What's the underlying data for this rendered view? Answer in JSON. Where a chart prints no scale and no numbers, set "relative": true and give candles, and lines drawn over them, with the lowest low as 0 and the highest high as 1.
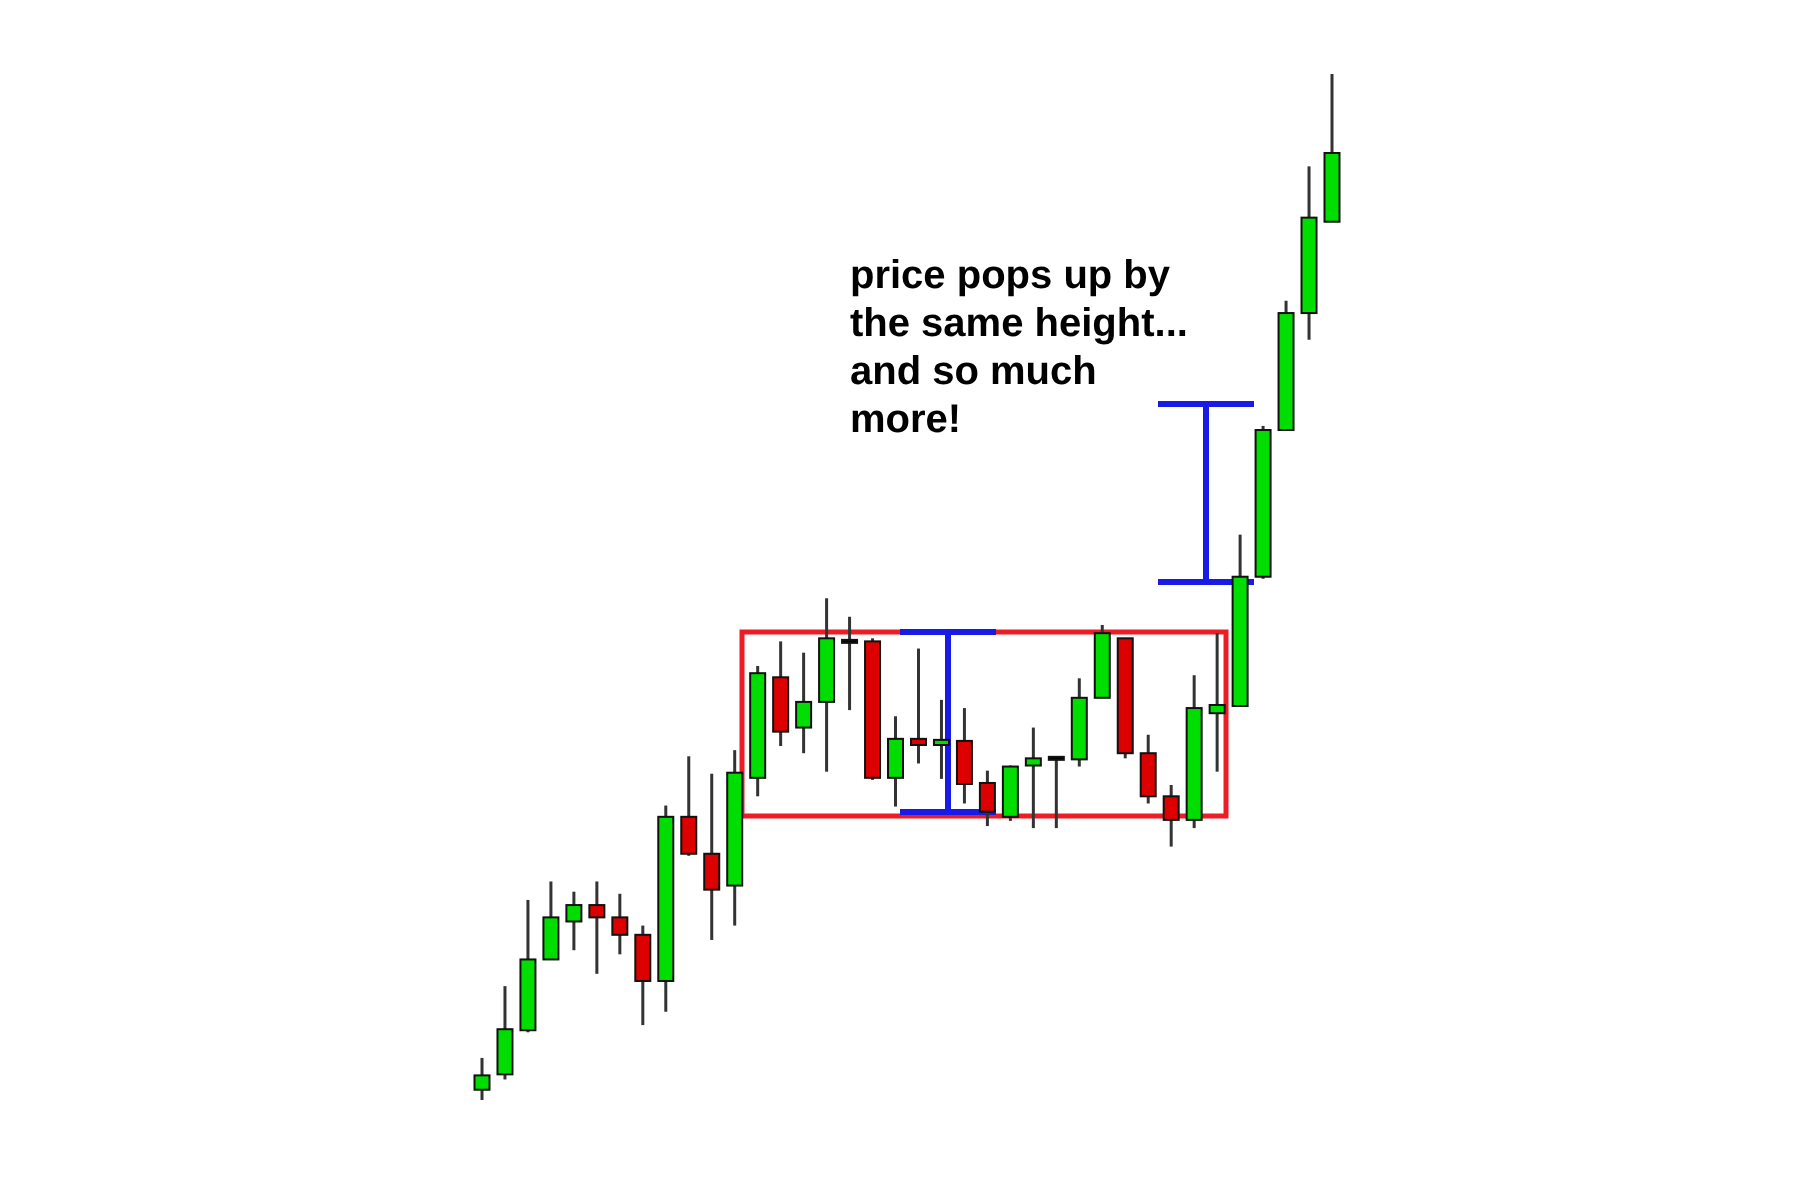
{
  "chart_data": {
    "type": "candlestick",
    "relative": true,
    "categories": [
      null,
      null,
      null,
      null,
      null,
      null,
      null,
      null,
      null,
      null,
      null,
      null,
      null,
      null,
      null,
      null,
      null,
      null,
      null,
      null,
      null,
      null,
      null,
      null,
      null,
      null,
      null,
      null,
      null,
      null,
      null,
      null,
      null,
      null,
      null,
      null,
      null,
      null
    ],
    "ohlc": [
      [
        0.01,
        0.041,
        0.0,
        0.024
      ],
      [
        0.025,
        0.111,
        0.02,
        0.069
      ],
      [
        0.068,
        0.195,
        0.066,
        0.137
      ],
      [
        0.137,
        0.213,
        0.137,
        0.178
      ],
      [
        0.174,
        0.203,
        0.146,
        0.19
      ],
      [
        0.19,
        0.213,
        0.123,
        0.178
      ],
      [
        0.178,
        0.201,
        0.142,
        0.161
      ],
      [
        0.161,
        0.17,
        0.073,
        0.116
      ],
      [
        0.116,
        0.287,
        0.086,
        0.276
      ],
      [
        0.276,
        0.335,
        0.238,
        0.24
      ],
      [
        0.24,
        0.318,
        0.156,
        0.205
      ],
      [
        0.209,
        0.341,
        0.17,
        0.319
      ],
      [
        0.314,
        0.423,
        0.296,
        0.416
      ],
      [
        0.412,
        0.447,
        0.345,
        0.359
      ],
      [
        0.363,
        0.436,
        0.338,
        0.388
      ],
      [
        0.388,
        0.489,
        0.32,
        0.45
      ],
      [
        0.447,
        0.471,
        0.38,
        0.447
      ],
      [
        0.447,
        0.45,
        0.312,
        0.314
      ],
      [
        0.314,
        0.374,
        0.286,
        0.352
      ],
      [
        0.352,
        0.44,
        0.328,
        0.346
      ],
      [
        0.346,
        0.39,
        0.313,
        0.351
      ],
      [
        0.35,
        0.382,
        0.289,
        0.308
      ],
      [
        0.309,
        0.321,
        0.267,
        0.281
      ],
      [
        0.276,
        0.326,
        0.272,
        0.325
      ],
      [
        0.326,
        0.363,
        0.265,
        0.333
      ],
      [
        0.333,
        0.333,
        0.265,
        0.333
      ],
      [
        0.332,
        0.411,
        0.325,
        0.392
      ],
      [
        0.392,
        0.463,
        0.392,
        0.455
      ],
      [
        0.45,
        0.45,
        0.333,
        0.338
      ],
      [
        0.338,
        0.356,
        0.289,
        0.296
      ],
      [
        0.296,
        0.307,
        0.247,
        0.273
      ],
      [
        0.273,
        0.414,
        0.265,
        0.382
      ],
      [
        0.377,
        0.455,
        0.32,
        0.385
      ],
      [
        0.384,
        0.551,
        0.384,
        0.51
      ],
      [
        0.51,
        0.657,
        0.508,
        0.653
      ],
      [
        0.653,
        0.779,
        0.653,
        0.767
      ],
      [
        0.767,
        0.91,
        0.741,
        0.86
      ],
      [
        0.856,
        1.0,
        0.856,
        0.923
      ]
    ],
    "colors": [
      "#00dd00",
      "#00dd00",
      "#00dd00",
      "#00dd00",
      "#00dd00",
      "#dd0000",
      "#dd0000",
      "#dd0000",
      "#00dd00",
      "#dd0000",
      "#dd0000",
      "#00dd00",
      "#00dd00",
      "#dd0000",
      "#00dd00",
      "#00dd00",
      "#000000",
      "#dd0000",
      "#00dd00",
      "#dd0000",
      "#00dd00",
      "#dd0000",
      "#dd0000",
      "#00dd00",
      "#00dd00",
      "#000000",
      "#00dd00",
      "#00dd00",
      "#dd0000",
      "#dd0000",
      "#dd0000",
      "#00dd00",
      "#00dd00",
      "#00dd00",
      "#00dd00",
      "#00dd00",
      "#00dd00",
      "#00dd00"
    ],
    "annotations": [
      "price pops up by the same height... and so much more!"
    ]
  }
}
